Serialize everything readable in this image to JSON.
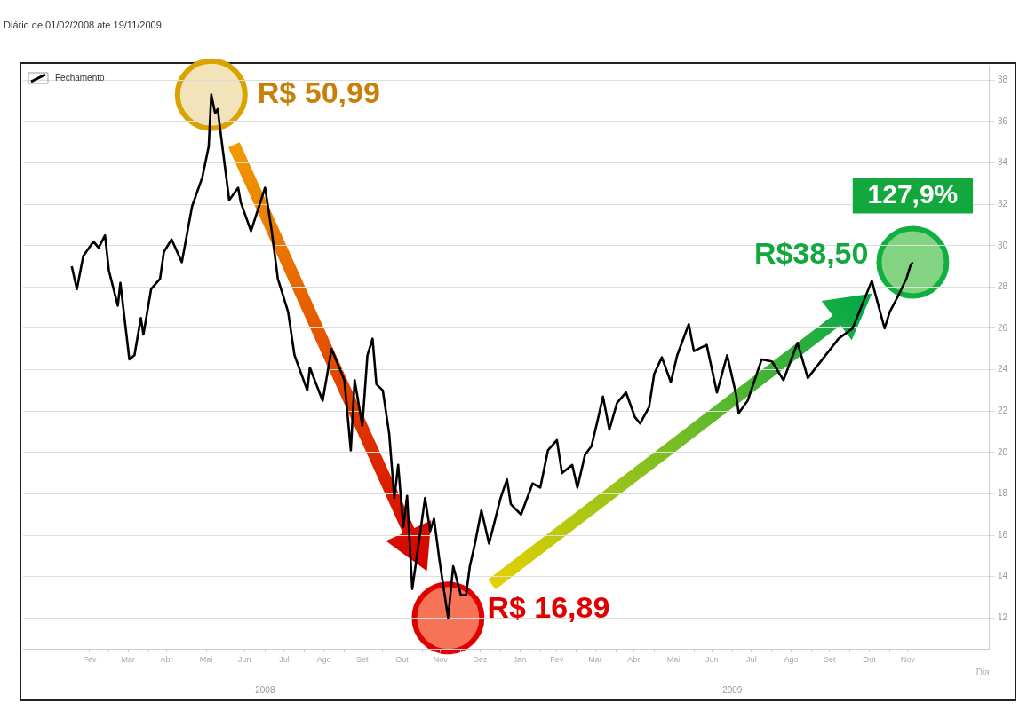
{
  "chart_data": {
    "type": "line",
    "subtitle": "Diário de 01/02/2008 ate 19/11/2009",
    "xlabel": "Dia",
    "xlim": [
      "2007-12-25",
      "2010-01-18"
    ],
    "ylim": [
      10.5,
      38.7
    ],
    "yticks": [
      12,
      14,
      16,
      18,
      20,
      22,
      24,
      26,
      28,
      30,
      32,
      34,
      36,
      38
    ],
    "xticks": [
      {
        "value": "2008-02-15",
        "label": "Fev"
      },
      {
        "value": "2008-03-01",
        "label": null
      },
      {
        "value": "2008-03-16",
        "label": "Mar"
      },
      {
        "value": "2008-04-01",
        "label": null
      },
      {
        "value": "2008-04-15",
        "label": "Abr"
      },
      {
        "value": "2008-05-01",
        "label": null
      },
      {
        "value": "2008-05-16",
        "label": "Mai"
      },
      {
        "value": "2008-06-01",
        "label": null
      },
      {
        "value": "2008-06-15",
        "label": "Jun"
      },
      {
        "value": "2008-07-01",
        "label": null
      },
      {
        "value": "2008-07-16",
        "label": "Jul"
      },
      {
        "value": "2008-08-01",
        "label": null
      },
      {
        "value": "2008-08-16",
        "label": "Ago"
      },
      {
        "value": "2008-09-01",
        "label": null
      },
      {
        "value": "2008-09-15",
        "label": "Set"
      },
      {
        "value": "2008-10-01",
        "label": null
      },
      {
        "value": "2008-10-16",
        "label": "Out"
      },
      {
        "value": "2008-11-01",
        "label": null
      },
      {
        "value": "2008-11-15",
        "label": "Nov"
      },
      {
        "value": "2008-12-01",
        "label": null
      },
      {
        "value": "2008-12-16",
        "label": "Dez"
      },
      {
        "value": "2009-01-01",
        "label": null
      },
      {
        "value": "2009-01-16",
        "label": "Jan"
      },
      {
        "value": "2009-02-01",
        "label": null
      },
      {
        "value": "2009-02-14",
        "label": "Fev"
      },
      {
        "value": "2009-03-01",
        "label": null
      },
      {
        "value": "2009-03-16",
        "label": "Mar"
      },
      {
        "value": "2009-04-01",
        "label": null
      },
      {
        "value": "2009-04-15",
        "label": "Abr"
      },
      {
        "value": "2009-05-01",
        "label": null
      },
      {
        "value": "2009-05-16",
        "label": "Mai"
      },
      {
        "value": "2009-06-01",
        "label": null
      },
      {
        "value": "2009-06-15",
        "label": "Jun"
      },
      {
        "value": "2009-07-01",
        "label": null
      },
      {
        "value": "2009-07-16",
        "label": "Jul"
      },
      {
        "value": "2009-08-01",
        "label": null
      },
      {
        "value": "2009-08-16",
        "label": "Ago"
      },
      {
        "value": "2009-09-01",
        "label": null
      },
      {
        "value": "2009-09-15",
        "label": "Set"
      },
      {
        "value": "2009-10-01",
        "label": null
      },
      {
        "value": "2009-10-16",
        "label": "Out"
      },
      {
        "value": "2009-11-01",
        "label": null
      },
      {
        "value": "2009-11-15",
        "label": "Nov"
      }
    ],
    "x2lim": [
      "2007-12-25",
      "2010-01-18"
    ],
    "x2ticks": [
      {
        "value": "2008-07-01",
        "label": "2008"
      },
      {
        "value": "2009-07-01",
        "label": "2009"
      }
    ],
    "grid": "y",
    "legend": "top left",
    "marker": "none",
    "line_style": "solid",
    "series": [
      {
        "name": "Fechamento",
        "color": "#000000",
        "x": [
          "2008-02-01",
          "2008-02-05",
          "2008-02-10",
          "2008-02-18",
          "2008-02-22",
          "2008-02-27",
          "2008-03-01",
          "2008-03-08",
          "2008-03-10",
          "2008-03-17",
          "2008-03-21",
          "2008-03-26",
          "2008-03-28",
          "2008-04-03",
          "2008-04-10",
          "2008-04-13",
          "2008-04-19",
          "2008-04-27",
          "2008-05-05",
          "2008-05-13",
          "2008-05-18",
          "2008-05-20",
          "2008-05-23",
          "2008-05-25",
          "2008-05-27",
          "2008-06-03",
          "2008-06-10",
          "2008-06-12",
          "2008-06-20",
          "2008-07-01",
          "2008-07-06",
          "2008-07-11",
          "2008-07-19",
          "2008-07-24",
          "2008-08-03",
          "2008-08-05",
          "2008-08-15",
          "2008-08-22",
          "2008-09-01",
          "2008-09-06",
          "2008-09-09",
          "2008-09-15",
          "2008-09-19",
          "2008-09-23",
          "2008-09-26",
          "2008-10-01",
          "2008-10-06",
          "2008-10-10",
          "2008-10-13",
          "2008-10-17",
          "2008-10-20",
          "2008-10-24",
          "2008-11-03",
          "2008-11-07",
          "2008-11-10",
          "2008-11-14",
          "2008-11-21",
          "2008-11-25",
          "2008-12-01",
          "2008-12-05",
          "2008-12-08",
          "2008-12-12",
          "2008-12-17",
          "2008-12-23",
          "2009-01-01",
          "2009-01-06",
          "2009-01-09",
          "2009-01-17",
          "2009-01-26",
          "2009-02-01",
          "2009-02-07",
          "2009-02-14",
          "2009-02-18",
          "2009-02-26",
          "2009-03-02",
          "2009-03-08",
          "2009-03-13",
          "2009-03-18",
          "2009-03-22",
          "2009-03-27",
          "2009-04-02",
          "2009-04-09",
          "2009-04-16",
          "2009-04-20",
          "2009-04-27",
          "2009-05-01",
          "2009-05-07",
          "2009-05-14",
          "2009-05-19",
          "2009-05-28",
          "2009-06-01",
          "2009-06-11",
          "2009-06-19",
          "2009-06-27",
          "2009-07-04",
          "2009-07-06",
          "2009-07-13",
          "2009-07-24",
          "2009-08-01",
          "2009-08-10",
          "2009-08-21",
          "2009-08-29",
          "2009-09-22",
          "2009-10-03",
          "2009-10-18",
          "2009-10-21",
          "2009-10-28",
          "2009-11-01",
          "2009-11-07",
          "2009-11-14",
          "2009-11-17",
          "2009-11-19"
        ],
        "values": [
          29.0,
          27.9,
          29.5,
          30.2,
          29.9,
          30.5,
          28.8,
          27.1,
          28.2,
          24.5,
          24.7,
          26.5,
          25.7,
          27.9,
          28.4,
          29.7,
          30.3,
          29.2,
          31.9,
          33.3,
          34.8,
          37.3,
          36.4,
          36.6,
          35.6,
          32.2,
          32.8,
          32.1,
          30.7,
          32.8,
          30.8,
          28.4,
          26.8,
          24.7,
          23.0,
          24.1,
          22.5,
          25.0,
          23.5,
          20.1,
          23.5,
          21.3,
          24.7,
          25.5,
          23.3,
          23.0,
          20.9,
          17.8,
          19.4,
          16.4,
          17.9,
          13.4,
          17.8,
          16.2,
          16.8,
          14.9,
          12.0,
          14.5,
          13.1,
          13.1,
          14.5,
          15.6,
          17.2,
          15.6,
          17.8,
          18.7,
          17.5,
          17.0,
          18.5,
          18.3,
          20.1,
          20.6,
          19.0,
          19.4,
          18.3,
          19.9,
          20.3,
          21.6,
          22.7,
          21.1,
          22.4,
          22.9,
          21.7,
          21.4,
          22.2,
          23.8,
          24.6,
          23.4,
          24.7,
          26.2,
          24.9,
          25.2,
          22.9,
          24.7,
          22.8,
          21.9,
          22.5,
          24.5,
          24.4,
          23.5,
          25.3,
          23.6,
          25.5,
          26.0,
          28.3,
          27.6,
          26.0,
          26.8,
          27.5,
          28.4,
          29.0,
          29.2
        ]
      }
    ],
    "annotations": [
      {
        "text": "R$ 50,99",
        "x": "2008-05-20",
        "y": 37.3
      },
      {
        "text": "R$ 16,89",
        "x": "2008-11-21",
        "y": 12.0
      },
      {
        "text": "R$38,50",
        "x": "2009-11-19",
        "y": 29.2
      },
      {
        "text": "127,9%",
        "x": "2009-11-19",
        "y": 29.2
      }
    ]
  }
}
